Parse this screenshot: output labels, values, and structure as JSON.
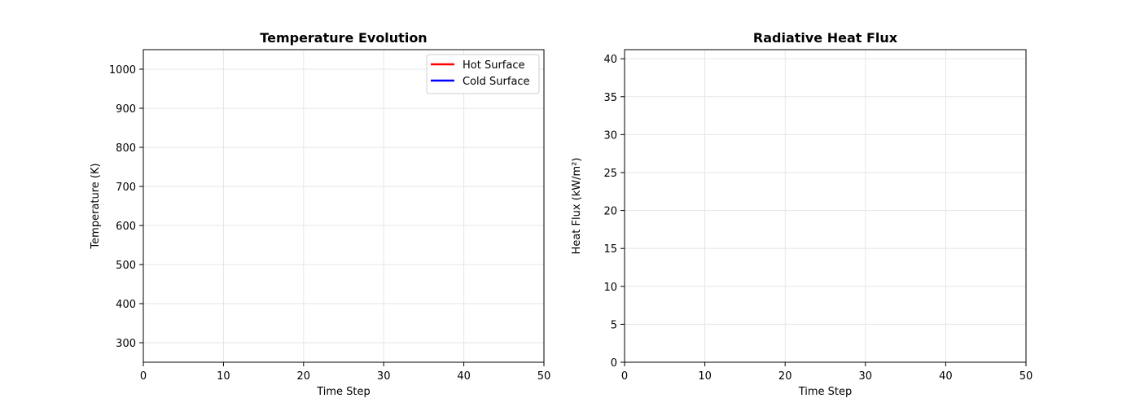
{
  "chart_data": [
    {
      "type": "line",
      "title": "Temperature Evolution",
      "xlabel": "Time Step",
      "ylabel": "Temperature (K)",
      "xlim": [
        0,
        50
      ],
      "ylim": [
        250,
        1050
      ],
      "xticks": [
        0,
        10,
        20,
        30,
        40,
        50
      ],
      "yticks": [
        300,
        400,
        500,
        600,
        700,
        800,
        900,
        1000
      ],
      "grid": true,
      "legend_position": "top-right",
      "series": [
        {
          "name": "Hot Surface",
          "color": "#ff0000",
          "x": [],
          "y": []
        },
        {
          "name": "Cold Surface",
          "color": "#0000ff",
          "x": [],
          "y": []
        }
      ]
    },
    {
      "type": "line",
      "title": "Radiative Heat Flux",
      "xlabel": "Time Step",
      "ylabel": "Heat Flux (kW/m²)",
      "xlim": [
        0,
        50
      ],
      "ylim": [
        0,
        41.2
      ],
      "xticks": [
        0,
        10,
        20,
        30,
        40,
        50
      ],
      "yticks": [
        0,
        5,
        10,
        15,
        20,
        25,
        30,
        35,
        40
      ],
      "grid": true,
      "series": []
    }
  ]
}
